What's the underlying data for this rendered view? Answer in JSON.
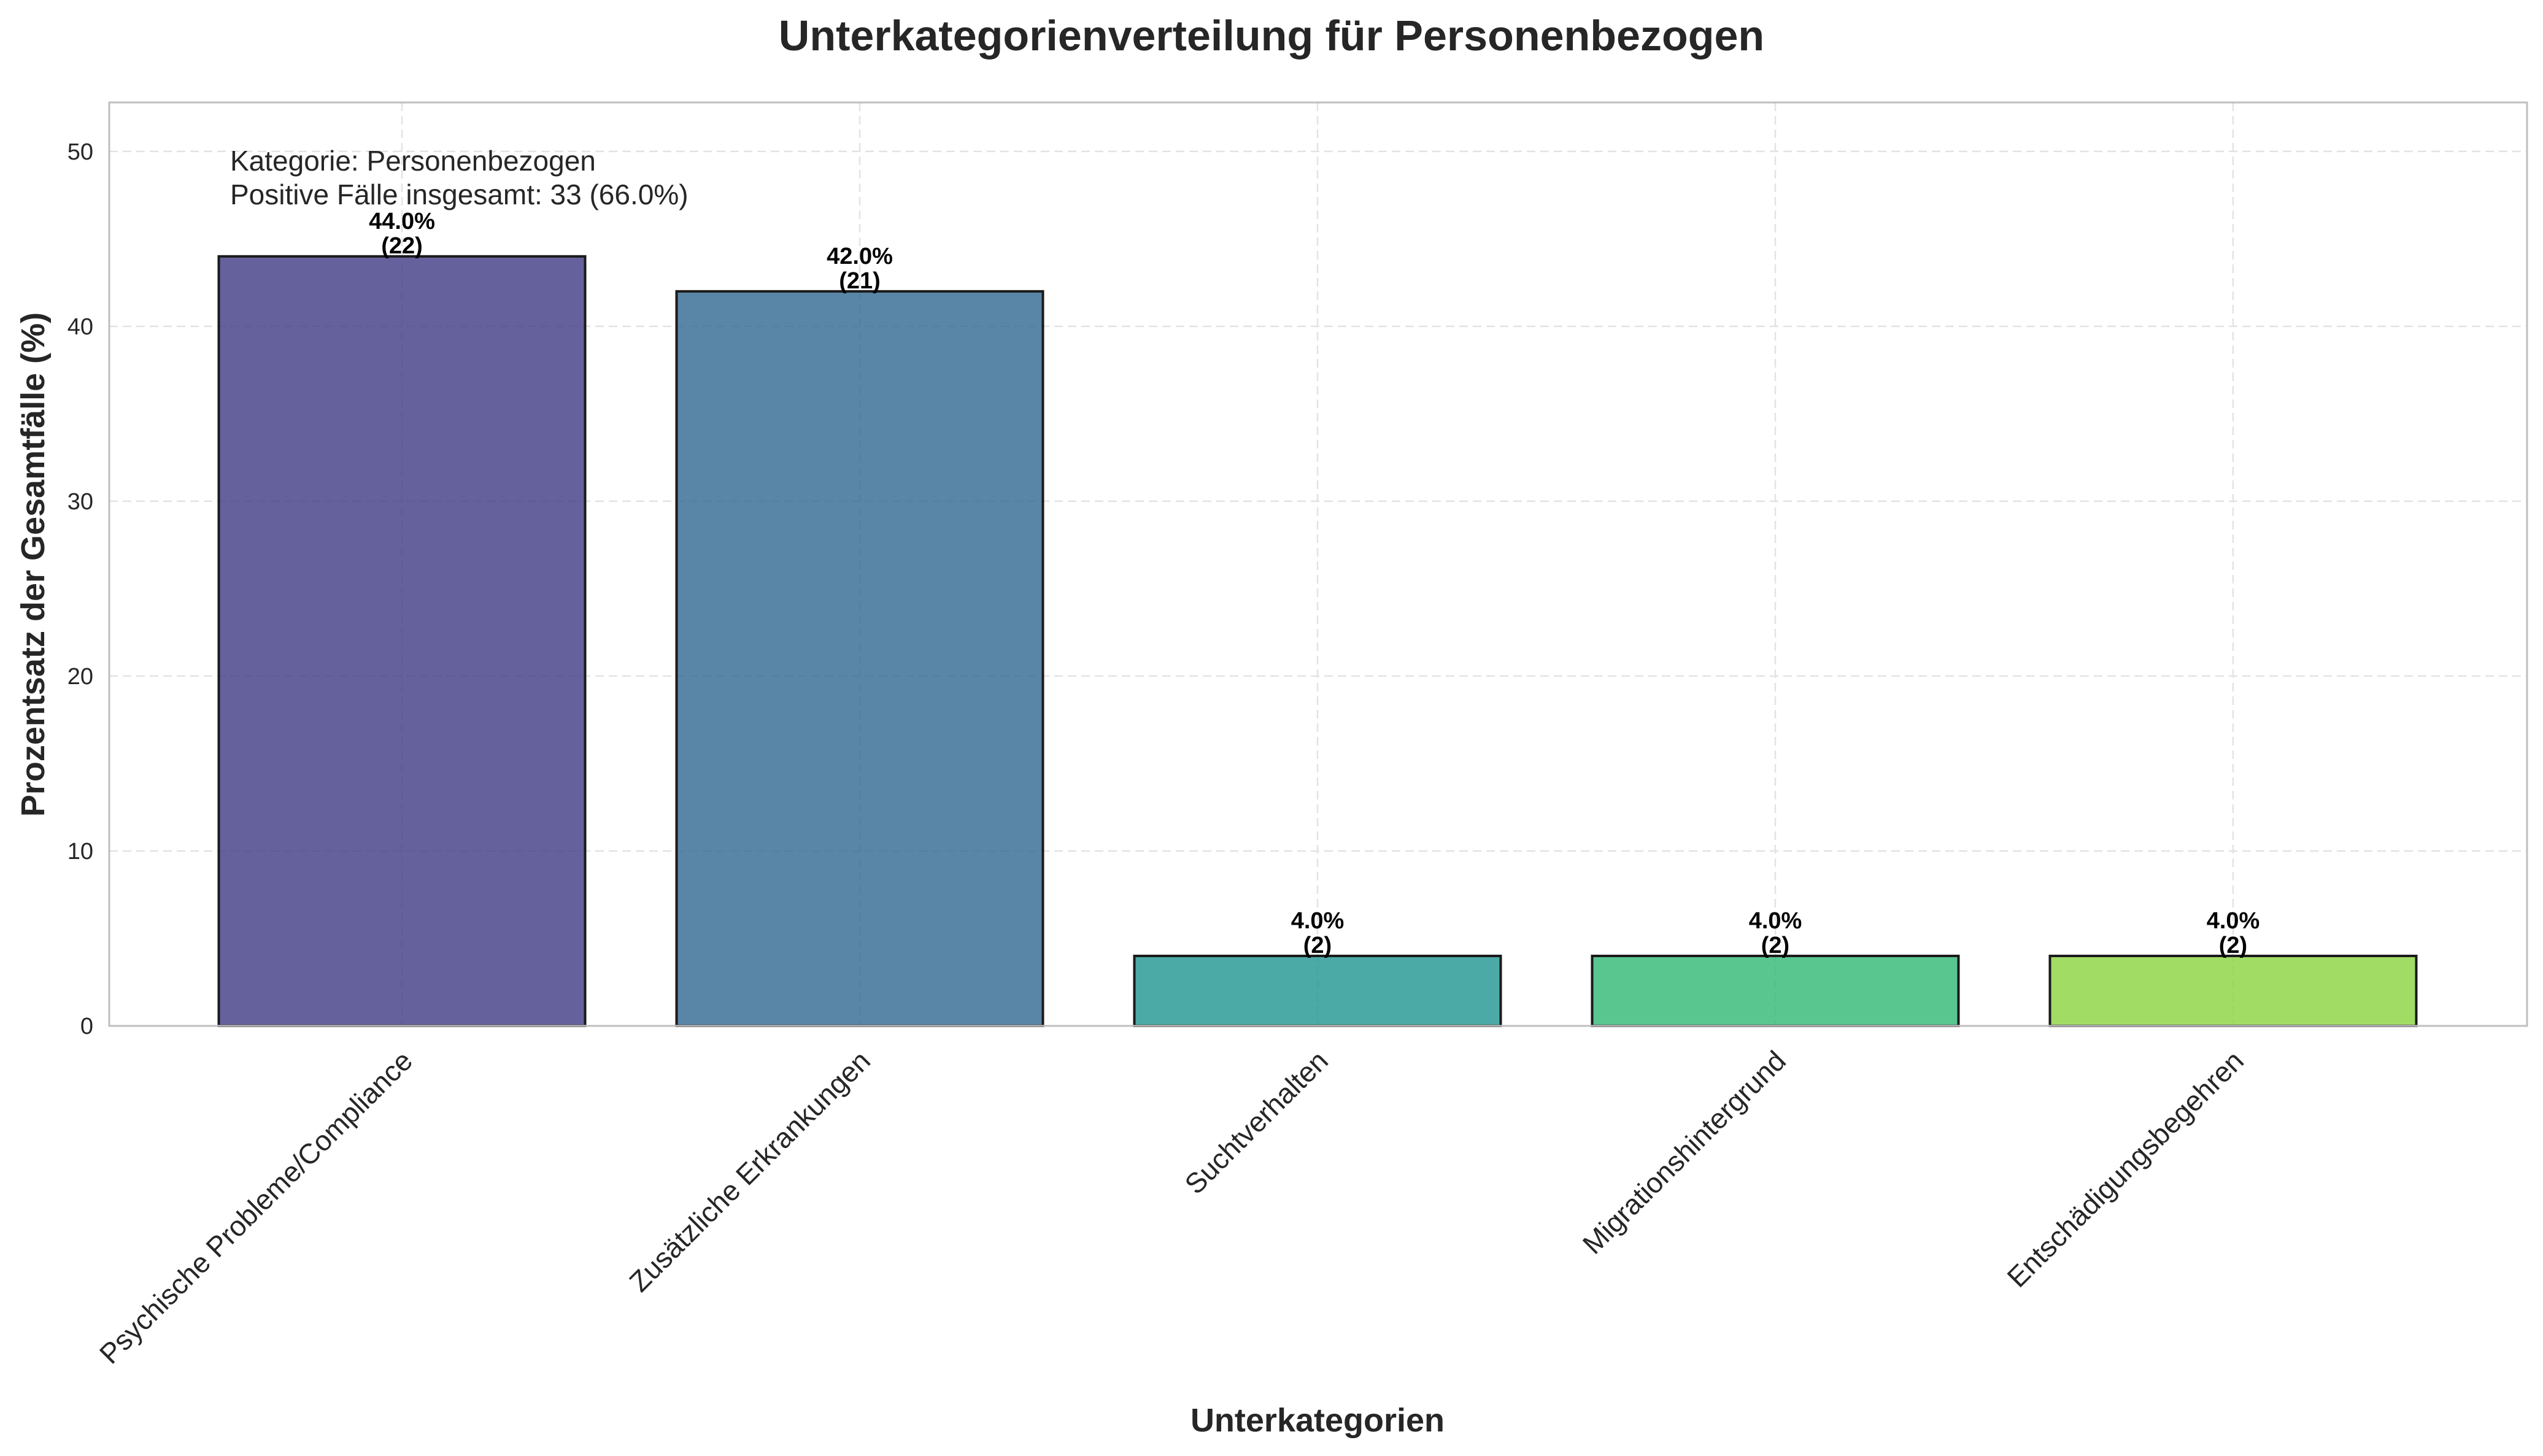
{
  "chart_data": {
    "type": "bar",
    "title": "Unterkategorienverteilung für Personenbezogen",
    "xlabel": "Unterkategorien",
    "ylabel": "Prozentsatz der Gesamtfälle (%)",
    "ylim": [
      0,
      52.8
    ],
    "yticks": [
      "0",
      "10",
      "20",
      "30",
      "40",
      "50"
    ],
    "grid": true,
    "categories": [
      "Psychische Probleme/Compliance",
      "Zusätzliche Erkrankungen",
      "Suchtverhalten",
      "Migrationshintergrund",
      "Entschädigungsbegehren"
    ],
    "values": [
      44.0,
      42.0,
      4.0,
      4.0,
      4.0
    ],
    "counts": [
      22,
      21,
      2,
      2,
      2
    ],
    "value_labels": [
      "44.0%",
      "42.0%",
      "4.0%",
      "4.0%",
      "4.0%"
    ],
    "count_labels": [
      "(22)",
      "(21)",
      "(2)",
      "(2)",
      "(2)"
    ],
    "colors": [
      "#3e3a83",
      "#2f6690",
      "#1e9490",
      "#2fb874",
      "#8ad33f"
    ],
    "annotation": {
      "line1": "Kategorie: Personenbezogen",
      "line2": "Positive Fälle insgesamt: 33 (66.0%)"
    }
  }
}
